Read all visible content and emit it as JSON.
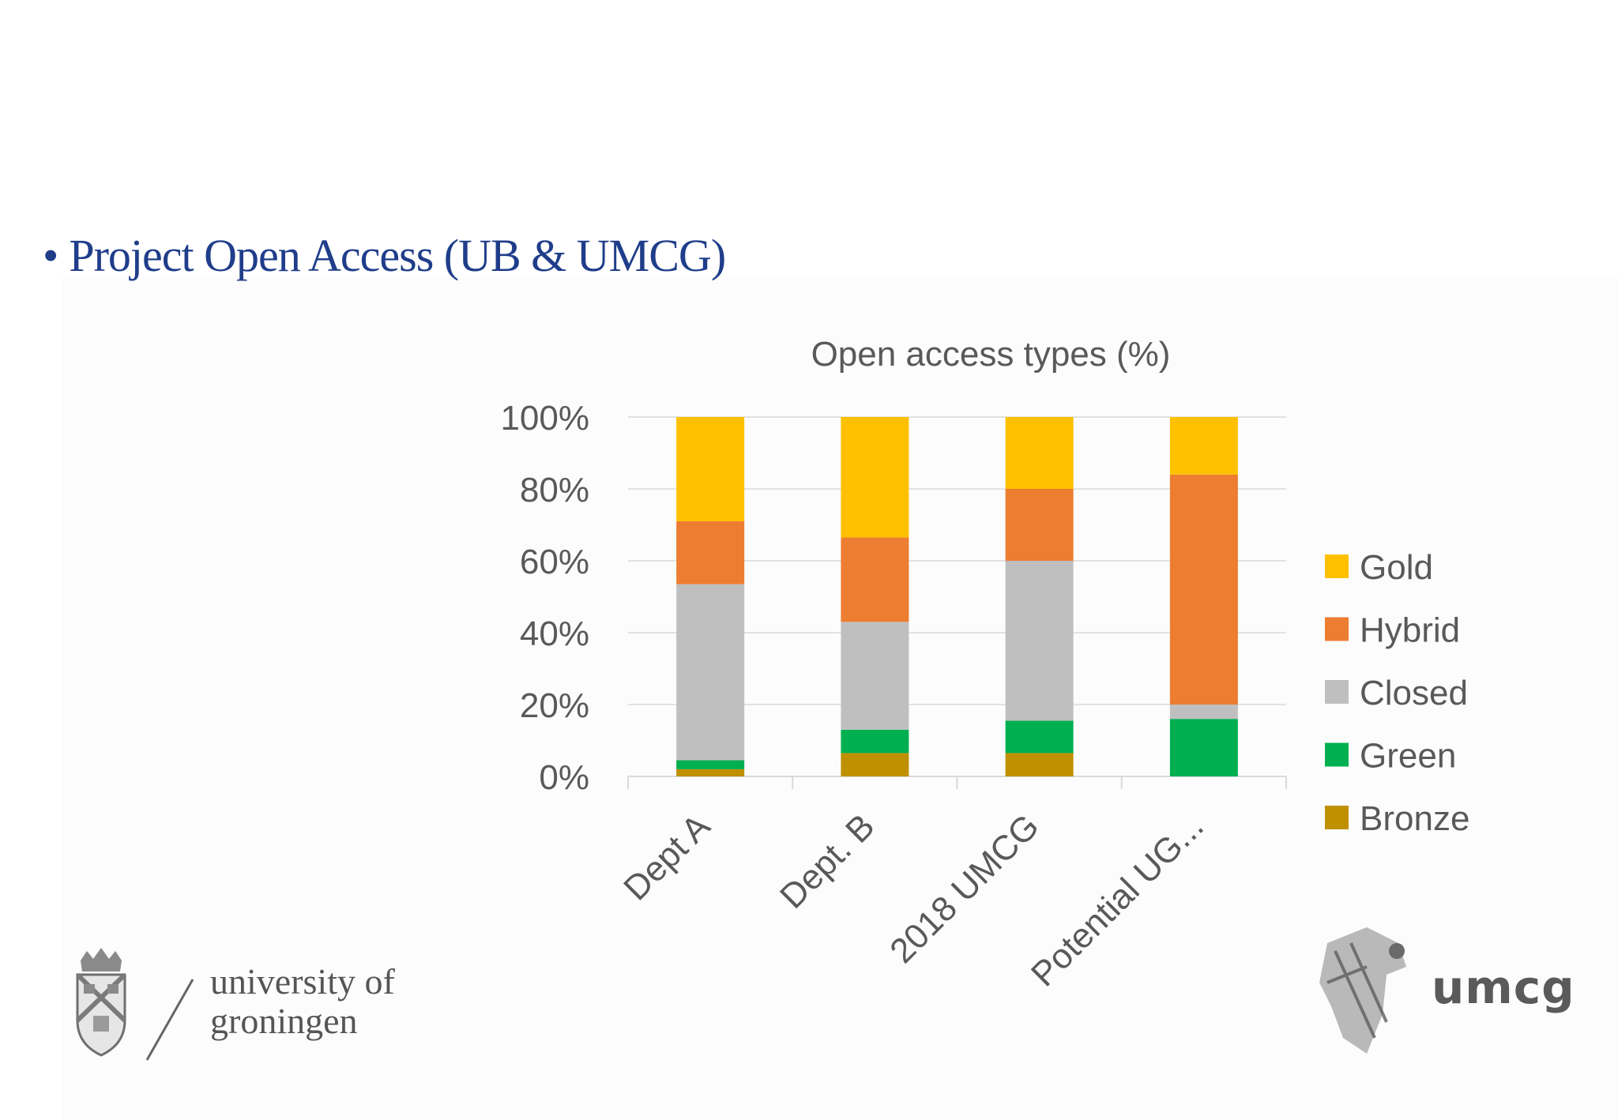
{
  "slide": {
    "bullet_char": "•",
    "bullet_text": "Project Open Access (UB & UMCG)"
  },
  "logos": {
    "university": {
      "line1": "university of",
      "line2": "groningen"
    },
    "umcg": "umcg"
  },
  "colors": {
    "title_text": "#1f3d8a",
    "axis_text": "#595959",
    "gridline": "#d9d9d9"
  },
  "chart_data": {
    "type": "bar",
    "stacked": true,
    "percent": true,
    "title": "Open access types (%)",
    "categories": [
      "Dept A",
      "Dept. B",
      "2018 UMCG",
      "Potential UG..."
    ],
    "y_ticks": [
      "0%",
      "20%",
      "40%",
      "60%",
      "80%",
      "100%"
    ],
    "ylim": [
      0,
      100
    ],
    "grid": true,
    "legend_position": "right",
    "series": [
      {
        "name": "Bronze",
        "color": "#bf9000",
        "values": [
          2,
          6.5,
          6.5,
          0
        ]
      },
      {
        "name": "Green",
        "color": "#00b050",
        "values": [
          2.5,
          6.5,
          9,
          16
        ]
      },
      {
        "name": "Closed",
        "color": "#bfbfbf",
        "values": [
          49,
          30,
          44.5,
          4
        ]
      },
      {
        "name": "Hybrid",
        "color": "#ed7d31",
        "values": [
          17.5,
          23.5,
          20,
          64
        ]
      },
      {
        "name": "Gold",
        "color": "#ffc000",
        "values": [
          29,
          33.5,
          20,
          16
        ]
      }
    ]
  }
}
